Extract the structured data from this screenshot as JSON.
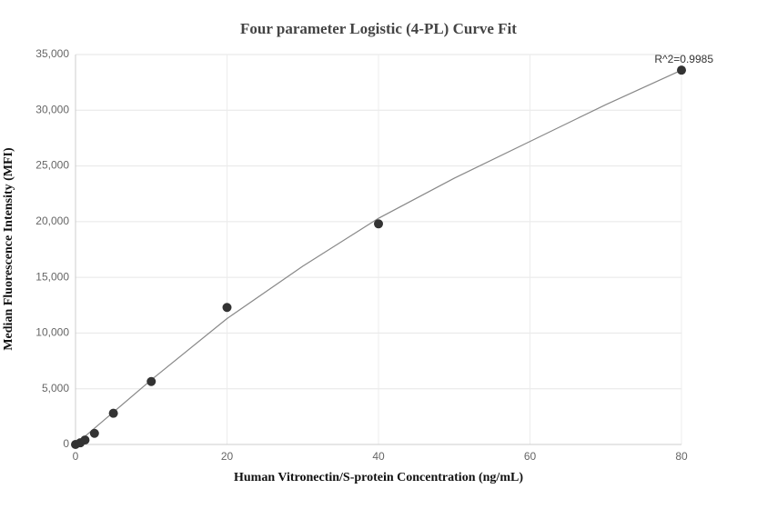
{
  "chart_data": {
    "type": "scatter",
    "title": "Four parameter Logistic (4-PL) Curve Fit",
    "x_label": "Human Vitronectin/S-protein Concentration (ng/mL)",
    "y_label": "Median Fluorescence Intensity (MFI)",
    "annotation": "R^2=0.9985",
    "xlim": [
      0,
      80
    ],
    "xticks": [
      0,
      20,
      40,
      60,
      80
    ],
    "ylim": [
      0,
      35000
    ],
    "yticks": [
      0,
      {
        "value": 5000,
        "label": "5,000"
      },
      {
        "value": 10000,
        "label": "10,000"
      },
      {
        "value": 15000,
        "label": "15,000"
      },
      {
        "value": 20000,
        "label": "20,000"
      },
      {
        "value": 25000,
        "label": "25,000"
      },
      {
        "value": 30000,
        "label": "30,000"
      },
      {
        "value": 35000,
        "label": "35,000"
      }
    ],
    "grid": true,
    "points": {
      "color": "#333333",
      "x": [
        0,
        0.625,
        1.25,
        2.5,
        5,
        10,
        20,
        40,
        80
      ],
      "values": [
        0,
        150,
        400,
        1000,
        2800,
        5650,
        12300,
        19800,
        33600
      ]
    },
    "fit": {
      "color": "#888888",
      "x": [
        0,
        2.5,
        5,
        10,
        20,
        30,
        40,
        50,
        60,
        70,
        80
      ],
      "values": [
        0,
        1450,
        2900,
        5800,
        11300,
        16000,
        20300,
        23900,
        27200,
        30500,
        33600
      ]
    }
  }
}
